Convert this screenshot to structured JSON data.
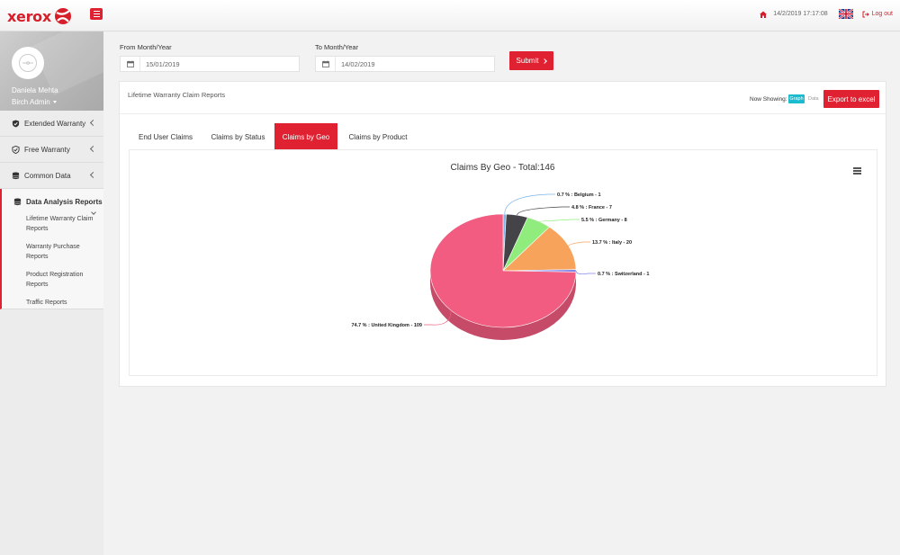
{
  "header": {
    "brand": "xerox",
    "datetime": "14/2/2019 17:17:08",
    "logout_label": "Log out"
  },
  "sidebar": {
    "user_name": "Daniela Mehta",
    "user_role": "Birch Admin",
    "items": [
      {
        "label": "Extended Warranty",
        "icon": "shield-icon"
      },
      {
        "label": "Free Warranty",
        "icon": "check-shield-icon"
      },
      {
        "label": "Common Data",
        "icon": "database-icon"
      }
    ],
    "active_item": {
      "label": "Data Analysis Reports",
      "icon": "database-icon",
      "sub_items": [
        "Lifetime Warranty Claim Reports",
        "Warranty Purchase Reports",
        "Product Registration Reports",
        "Traffic Reports"
      ]
    }
  },
  "filters": {
    "from_label": "From Month/Year",
    "from_value": "15/01/2019",
    "to_label": "To Month/Year",
    "to_value": "14/02/2019",
    "submit_label": "Submit"
  },
  "panel": {
    "title": "Lifetime Warranty Claim Reports",
    "now_showing_label": "Now Showing:",
    "graph_label": "Graph",
    "data_label": "Data",
    "export_label": "Export to excel",
    "tabs": [
      "End User Claims",
      "Claims by Status",
      "Claims by Geo",
      "Claims by Product"
    ],
    "active_tab": 2
  },
  "chart_data": {
    "type": "pie",
    "title": "Claims By Geo - Total:146",
    "total": 146,
    "slices": [
      {
        "name": "Belgium",
        "value": 1,
        "percent": "0.7 %",
        "color": "#7cb5ec",
        "label": "0.7 % : Belgium - 1"
      },
      {
        "name": "France",
        "value": 7,
        "percent": "4.8 %",
        "color": "#434348",
        "label": "4.8 % : France - 7"
      },
      {
        "name": "Germany",
        "value": 8,
        "percent": "5.5 %",
        "color": "#90ed7d",
        "label": "5.5 % : Germany - 8"
      },
      {
        "name": "Italy",
        "value": 20,
        "percent": "13.7 %",
        "color": "#f7a35c",
        "label": "13.7 % : Italy - 20"
      },
      {
        "name": "Switzerland",
        "value": 1,
        "percent": "0.7 %",
        "color": "#8085e9",
        "label": "0.7 % : Switzerland - 1"
      },
      {
        "name": "United Kingdom",
        "value": 109,
        "percent": "74.7 %",
        "color": "#f15c80",
        "label": "74.7 % : United Kingdom - 109"
      }
    ]
  }
}
